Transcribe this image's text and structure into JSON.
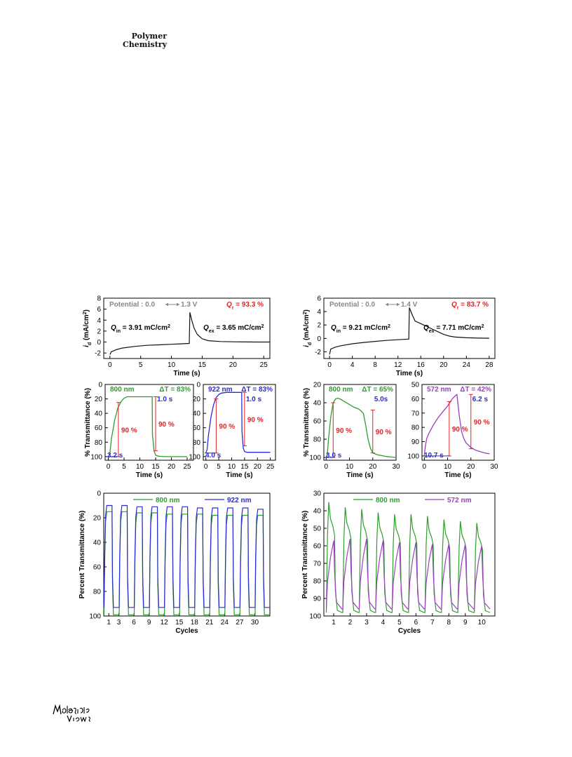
{
  "header": {
    "journal_line1": "Polymer",
    "journal_line2": "Chemistry"
  },
  "footer": {
    "logo": "Materials Views handwritten logo"
  },
  "chart_data": [
    {
      "id": "cv-left",
      "type": "line",
      "x": [
        0,
        0.2,
        1,
        2,
        4,
        6,
        8,
        10,
        12,
        12.9,
        13.0,
        13.3,
        13.7,
        14.2,
        15,
        16,
        18,
        20,
        22,
        24,
        26
      ],
      "y": [
        -2.3,
        -1.8,
        -1.4,
        -1.1,
        -0.8,
        -0.6,
        -0.5,
        -0.4,
        -0.3,
        -0.25,
        5.4,
        4.0,
        2.5,
        1.4,
        0.6,
        0.25,
        0.1,
        0.05,
        0.02,
        0,
        0
      ],
      "xlim": [
        -1,
        26
      ],
      "ylim": [
        -3,
        8
      ],
      "xticks": [
        0,
        5,
        10,
        15,
        20,
        25
      ],
      "yticks": [
        -2,
        0,
        2,
        4,
        6,
        8
      ],
      "xlabel": "Time (s)",
      "ylabel": "i",
      "ylabel_sub": "d",
      "ylabel_unit": " (mA/cm",
      "ylabel_sup": "2",
      "ylabel_close": ")",
      "potential_label": "Potential : 0.0",
      "potential_arrow": "⟷",
      "potential_end": "1.3 V",
      "qr_label": "Q",
      "qr_sub": "r",
      "qr_value": " = 93.3 %",
      "qin_label": "Q",
      "qin_sub": "in",
      "qin_value": " = 3.91 mC/cm",
      "qin_sup": "2",
      "qex_label": "Q",
      "qex_sub": "ex",
      "qex_value": " = 3.65 mC/cm",
      "qex_sup": "2"
    },
    {
      "id": "cv-right",
      "type": "line",
      "x": [
        0,
        0.2,
        1,
        2,
        4,
        6,
        8,
        10,
        12,
        13.9,
        14.0,
        14.5,
        15,
        16,
        17,
        18,
        19,
        20,
        21,
        22,
        24,
        26,
        28
      ],
      "y": [
        -2.4,
        -1.6,
        -1.3,
        -1.1,
        -0.8,
        -0.6,
        -0.45,
        -0.3,
        -0.2,
        -0.1,
        4.6,
        3.5,
        2.6,
        2.2,
        1.8,
        1.4,
        1.0,
        0.6,
        0.35,
        0.2,
        0.1,
        0.05,
        0.02
      ],
      "xlim": [
        -1,
        29
      ],
      "ylim": [
        -3,
        6
      ],
      "xticks": [
        0,
        4,
        8,
        12,
        16,
        20,
        24,
        28
      ],
      "yticks": [
        -2,
        0,
        2,
        4,
        6
      ],
      "xlabel": "Time (s)",
      "ylabel": "i",
      "ylabel_sub": "d",
      "ylabel_unit": " (mA/cm",
      "ylabel_sup": "2",
      "ylabel_close": ")",
      "potential_label": "Potential : 0.0",
      "potential_arrow": "⟷",
      "potential_end": "1.4 V",
      "qr_label": "Q",
      "qr_sub": "r",
      "qr_value": " = 83.7 %",
      "qin_label": "Q",
      "qin_sub": "in",
      "qin_value": " = 9.21 mC/cm",
      "qin_sup": "2",
      "qex_label": "Q",
      "qex_sub": "ex",
      "qex_value": " = 7.71 mC/cm",
      "qex_sup": "2"
    },
    {
      "id": "sw-800a",
      "type": "line",
      "x": [
        0,
        0.5,
        1,
        2,
        3,
        4,
        5,
        6,
        8,
        10,
        12,
        13.9,
        14.0,
        14.5,
        15,
        16,
        18,
        20,
        22,
        24,
        25
      ],
      "y": [
        100,
        95,
        75,
        50,
        33,
        24,
        19,
        17,
        17,
        17,
        17,
        17,
        70,
        92,
        98,
        99.5,
        100,
        100,
        100,
        100,
        100
      ],
      "color": "#2e9e2e",
      "xlim": [
        -1,
        27
      ],
      "ylim": [
        105,
        0
      ],
      "xticks": [
        0,
        5,
        10,
        15,
        20,
        25
      ],
      "yticks": [
        0,
        20,
        40,
        60,
        80,
        100
      ],
      "xlabel": "Time (s)",
      "ylabel": "% Transmittance (%)",
      "wavelength": "800 nm",
      "delta": "ΔT = 83%",
      "t_color": "t1",
      "t_bleach": "3.2 s",
      "t_color_label": "1.0 s",
      "p1": "90 %",
      "p2": "90 %",
      "m1": {
        "x": 3.2,
        "ytop": 25,
        "ybot": 100
      },
      "m2": {
        "x": 15.0,
        "ytop": 17,
        "ybot": 92
      }
    },
    {
      "id": "sw-922a",
      "type": "line",
      "x": [
        0,
        0.5,
        1,
        2,
        3,
        4,
        5,
        6,
        8,
        10,
        12,
        13.9,
        14.0,
        14.5,
        15,
        16,
        18,
        20,
        22,
        24,
        25
      ],
      "y": [
        95,
        90,
        70,
        45,
        28,
        18,
        14,
        12,
        11,
        11,
        11,
        11,
        65,
        88,
        93,
        94,
        94,
        94,
        94,
        94,
        94
      ],
      "color": "#2b2bd6",
      "xlim": [
        -1,
        27
      ],
      "ylim": [
        105,
        0
      ],
      "xticks": [
        0,
        5,
        10,
        15,
        20,
        25
      ],
      "yticks": [
        0,
        20,
        40,
        60,
        80,
        100
      ],
      "xlabel": "Time (s)",
      "ylabel": "",
      "wavelength": "922 nm",
      "delta": "ΔT = 83%",
      "t_bleach": "4.0 s",
      "t_color_label": "1.0 s",
      "p1": "90 %",
      "p2": "90 %",
      "m1": {
        "x": 4.0,
        "ytop": 20,
        "ybot": 95
      },
      "m2": {
        "x": 15.0,
        "ytop": 11,
        "ybot": 85
      }
    },
    {
      "id": "sw-800b",
      "type": "line",
      "x": [
        0,
        0.5,
        1,
        2,
        3,
        4,
        5,
        6,
        8,
        10,
        12,
        14,
        15,
        16,
        17,
        18,
        19,
        20,
        22,
        24,
        26,
        28,
        30
      ],
      "y": [
        100,
        96,
        80,
        55,
        40,
        36,
        35,
        36,
        39,
        42,
        45,
        47,
        49,
        52,
        65,
        80,
        90,
        95,
        97,
        98,
        99,
        99.5,
        100
      ],
      "color": "#2e9e2e",
      "xlim": [
        -1,
        30
      ],
      "ylim": [
        103,
        20
      ],
      "xticks": [
        0,
        10,
        20,
        30
      ],
      "yticks": [
        20,
        40,
        60,
        80,
        100
      ],
      "xlabel": "Time (s)",
      "ylabel": "% Transmittance (%)",
      "wavelength": "800 nm",
      "delta": "ΔT = 65%",
      "t_bleach": "3.0 s",
      "t_color_label": "5.0s",
      "p1": "90 %",
      "p2": "90 %",
      "m1": {
        "x": 3.0,
        "ytop": 40,
        "ybot": 100
      },
      "m2": {
        "x": 20.0,
        "ytop": 48,
        "ybot": 95
      }
    },
    {
      "id": "sw-572b",
      "type": "line",
      "x": [
        0,
        0.3,
        1,
        2,
        3,
        4,
        6,
        8,
        10,
        12,
        13.9,
        14,
        15,
        16,
        17,
        18,
        20,
        22,
        24,
        26,
        28
      ],
      "y": [
        100,
        95,
        88,
        84,
        81,
        78,
        73,
        69,
        65,
        60,
        57,
        57,
        72,
        83,
        88,
        91,
        94,
        96,
        97,
        98,
        98.5
      ],
      "color": "#9b3fbf",
      "xlim": [
        -1,
        30
      ],
      "ylim": [
        103,
        50
      ],
      "xticks": [
        0,
        10,
        20,
        30
      ],
      "yticks": [
        50,
        60,
        70,
        80,
        90,
        100
      ],
      "xlabel": "Time (s)",
      "ylabel": "",
      "wavelength": "572 nm",
      "delta": "ΔT = 42%",
      "t_bleach": "10.7 s",
      "t_color_label": "6.2 s",
      "p1": "90 %",
      "p2": "90 %",
      "m1": {
        "x": 10.7,
        "ytop": 62,
        "ybot": 100
      },
      "m2": {
        "x": 20.0,
        "ytop": 57,
        "ybot": 95
      }
    },
    {
      "id": "cyc-left",
      "type": "line",
      "cycles": 11,
      "xlim": [
        0,
        33
      ],
      "ylim": [
        100,
        0
      ],
      "xticks": [
        1,
        3,
        6,
        9,
        12,
        15,
        18,
        21,
        24,
        27,
        30
      ],
      "yticks": [
        0,
        20,
        40,
        60,
        80,
        100
      ],
      "xlabel": "Cycles",
      "ylabel": "Percent Transmittance (%)",
      "series": [
        {
          "name": "800 nm",
          "color": "#2e9e2e",
          "low": 99,
          "high": [
            15,
            15,
            16,
            16,
            17,
            17,
            17,
            18,
            18,
            18,
            18
          ]
        },
        {
          "name": "922 nm",
          "color": "#2b2bd6",
          "low": 93,
          "high": [
            10,
            10,
            11,
            11,
            11,
            11,
            12,
            12,
            12,
            12,
            13
          ]
        }
      ]
    },
    {
      "id": "cyc-right",
      "type": "line",
      "cycles": 10,
      "xlim": [
        0.4,
        10.8
      ],
      "ylim": [
        100,
        30
      ],
      "xticks": [
        1,
        2,
        3,
        4,
        5,
        6,
        7,
        8,
        9,
        10
      ],
      "yticks": [
        30,
        40,
        50,
        60,
        70,
        80,
        90,
        100
      ],
      "xlabel": "Cycles",
      "ylabel": "Percent Transmittance (%)",
      "series": [
        {
          "name": "800 nm",
          "color": "#2e9e2e",
          "low": 98,
          "high": [
            35,
            38,
            39,
            41,
            42,
            42,
            43,
            45,
            46,
            47
          ]
        },
        {
          "name": "572 nm",
          "color": "#9b3fbf",
          "low": 96,
          "high": [
            57,
            56,
            56,
            57,
            58,
            58,
            59,
            59,
            59,
            60
          ]
        }
      ]
    }
  ]
}
